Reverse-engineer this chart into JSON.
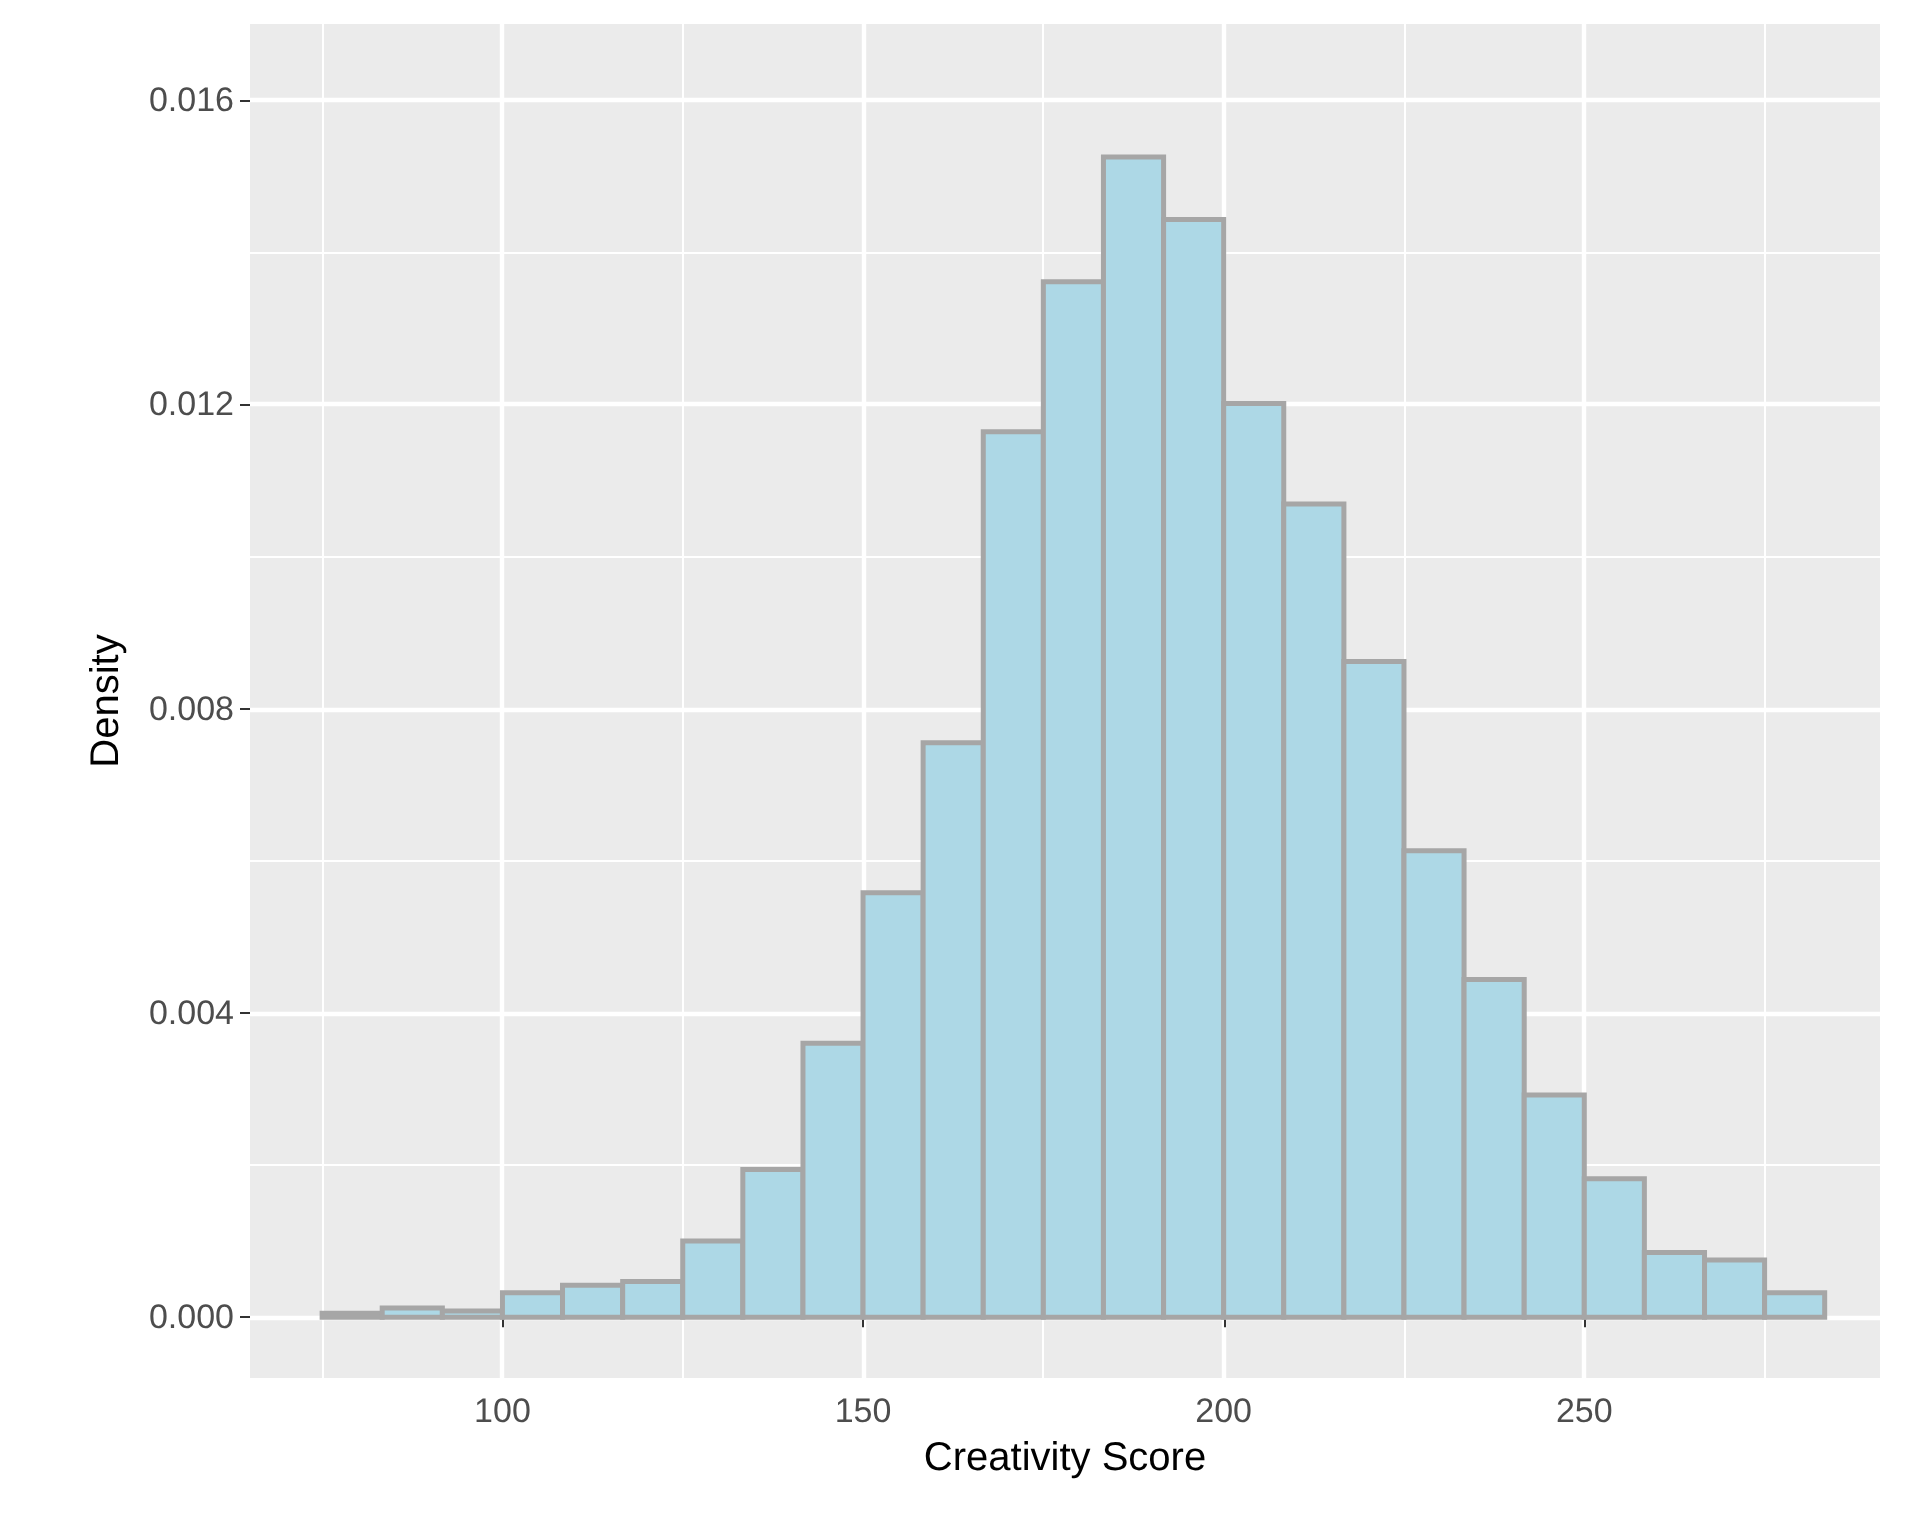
{
  "chart_data": {
    "type": "histogram",
    "xlabel": "Creativity Score",
    "ylabel": "Density",
    "bins": [
      75,
      83.33,
      91.67,
      100,
      108.33,
      116.67,
      125,
      133.33,
      141.67,
      150,
      158.33,
      166.67,
      175,
      183.33,
      191.67,
      200,
      208.33,
      216.67,
      225,
      233.33,
      241.67,
      250,
      258.33,
      266.67,
      275,
      283.33
    ],
    "values": [
      5e-05,
      0.00012,
      8e-05,
      0.00032,
      0.00042,
      0.00047,
      0.001,
      0.00194,
      0.0036,
      0.00558,
      0.00755,
      0.01164,
      0.01361,
      0.01525,
      0.01443,
      0.01201,
      0.01069,
      0.00862,
      0.00613,
      0.00444,
      0.00292,
      0.00182,
      0.00085,
      0.00075,
      0.00032
    ],
    "color": "#add8e6",
    "xlim": [
      65,
      291
    ],
    "xticks": [
      {
        "value": 75,
        "label": null
      },
      100,
      {
        "value": 125,
        "label": null
      },
      150,
      {
        "value": 175,
        "label": null
      },
      200,
      {
        "value": 225,
        "label": null
      },
      250,
      {
        "value": 275,
        "label": null
      }
    ],
    "ylim": [
      -0.0008,
      0.017
    ],
    "yticks": [
      {
        "value": 0,
        "label": "0.000"
      },
      {
        "value": 0.002,
        "label": null
      },
      {
        "value": 0.004,
        "label": "0.004"
      },
      {
        "value": 0.006,
        "label": null
      },
      {
        "value": 0.008,
        "label": "0.008"
      },
      {
        "value": 0.01,
        "label": null
      },
      {
        "value": 0.012,
        "label": "0.012"
      },
      {
        "value": 0.014,
        "label": null
      },
      {
        "value": 0.016,
        "label": "0.016"
      }
    ],
    "grid": true
  }
}
